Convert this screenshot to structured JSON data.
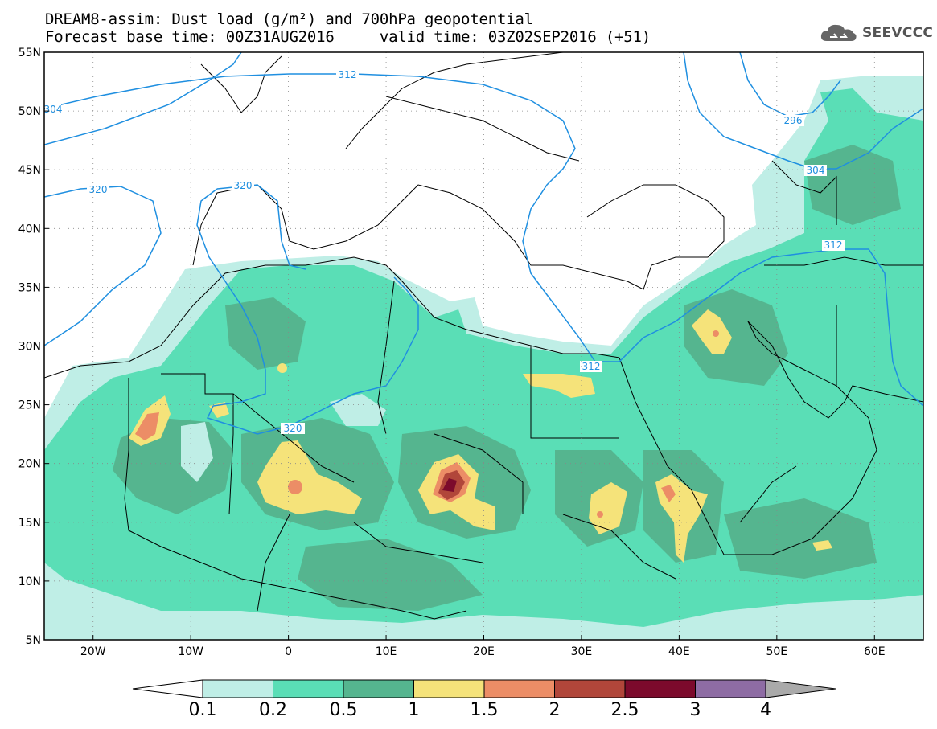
{
  "header": {
    "title_line1": "DREAM8-assim: Dust load (g/m²) and 700hPa geopotential",
    "title_line2": "Forecast base time: 00Z31AUG2016     valid time: 03Z02SEP2016 (+51)",
    "logo_text": "SEEVCCC"
  },
  "map": {
    "lat_labels": [
      "55N",
      "50N",
      "45N",
      "40N",
      "35N",
      "30N",
      "25N",
      "20N",
      "15N",
      "10N",
      "5N"
    ],
    "lon_labels": [
      "20W",
      "10W",
      "0",
      "10E",
      "20E",
      "30E",
      "40E",
      "50E",
      "60E"
    ],
    "contour_labels": [
      "312",
      "320",
      "320",
      "312",
      "312",
      "296",
      "304",
      "304",
      "320"
    ],
    "colors": {
      "geopotential_line": "#1f8fe0",
      "land_outline": "#000000"
    }
  },
  "colorbar": {
    "labels": [
      "0.1",
      "0.2",
      "0.5",
      "1",
      "1.5",
      "2",
      "2.5",
      "3",
      "4"
    ],
    "colors": [
      "#ffffff",
      "#bfeee6",
      "#5adeb6",
      "#55b58f",
      "#f5e37a",
      "#ec8d66",
      "#b1463a",
      "#7c0a2c",
      "#8e6ca4",
      "#aaaaaa"
    ]
  }
}
